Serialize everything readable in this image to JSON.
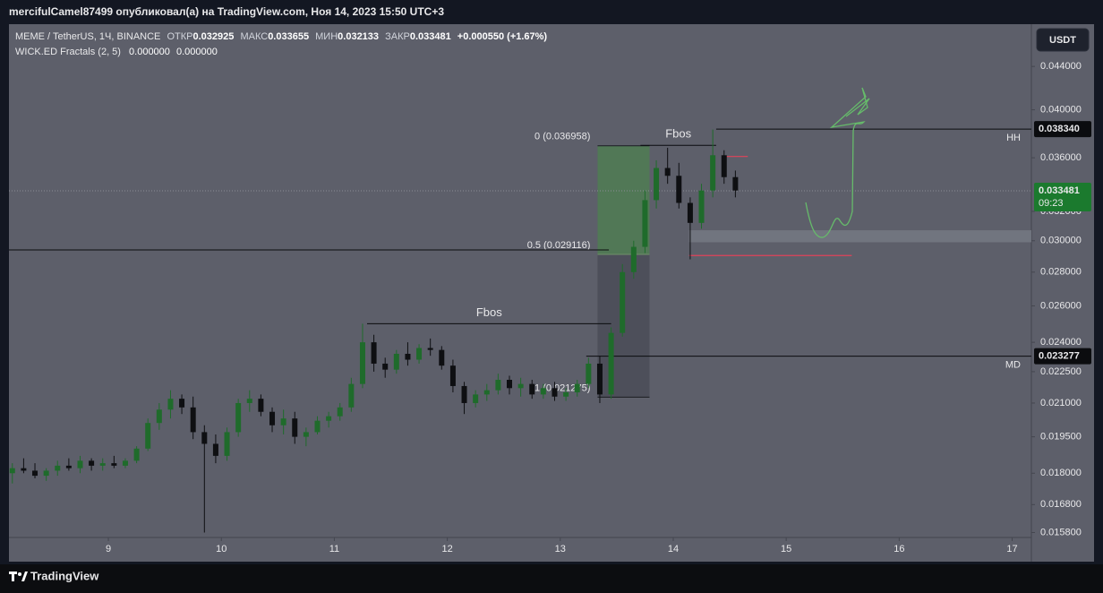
{
  "header": {
    "text": "mercifulCamel87499 опубликовал(а) на TradingView.com, Ноя 14, 2023 15:50 UTC+3"
  },
  "footer": {
    "brand": "TradingView"
  },
  "chart_data": {
    "type": "candlestick",
    "symbol": "MEME / TetherUS, 1Ч, BINANCE",
    "ohlc_legend": [
      {
        "label": "ОТКР",
        "value": 0.032925
      },
      {
        "label": "МАКС",
        "value": 0.033655
      },
      {
        "label": "МИН",
        "value": 0.032133
      },
      {
        "label": "ЗАКР",
        "value": 0.033481
      }
    ],
    "change": "+0.000550 (+1.67%)",
    "indicator": {
      "name": "WICK.ED Fractals (2, 5)",
      "values": [
        "0.000000",
        "0.000000"
      ]
    },
    "currency": "USDT",
    "x": [
      8.15,
      8.25,
      8.35,
      8.45,
      8.55,
      8.65,
      8.75,
      8.85,
      8.95,
      9.05,
      9.15,
      9.25,
      9.35,
      9.45,
      9.55,
      9.65,
      9.75,
      9.85,
      9.95,
      10.05,
      10.15,
      10.25,
      10.35,
      10.45,
      10.55,
      10.65,
      10.75,
      10.85,
      10.95,
      11.05,
      11.15,
      11.25,
      11.35,
      11.45,
      11.55,
      11.65,
      11.75,
      11.85,
      11.95,
      12.05,
      12.15,
      12.25,
      12.35,
      12.45,
      12.55,
      12.65,
      12.75,
      12.85,
      12.95,
      13.05,
      13.15,
      13.25,
      13.35,
      13.45,
      13.55,
      13.65,
      13.75,
      13.85,
      13.95,
      14.05,
      14.15,
      14.25,
      14.35,
      14.45,
      14.55
    ],
    "open": [
      0.018,
      0.0182,
      0.0181,
      0.0179,
      0.0181,
      0.0183,
      0.0182,
      0.0185,
      0.0183,
      0.0184,
      0.0183,
      0.0185,
      0.019,
      0.0201,
      0.0207,
      0.0212,
      0.0208,
      0.0197,
      0.0192,
      0.0187,
      0.0197,
      0.021,
      0.0212,
      0.0206,
      0.02,
      0.0203,
      0.0195,
      0.0197,
      0.0202,
      0.0204,
      0.0208,
      0.0219,
      0.024,
      0.0229,
      0.0226,
      0.0234,
      0.0231,
      0.0237,
      0.0236,
      0.0228,
      0.0218,
      0.021,
      0.0214,
      0.0216,
      0.0221,
      0.0217,
      0.0219,
      0.0214,
      0.0217,
      0.0213,
      0.0215,
      0.0219,
      0.0229,
      0.0214,
      0.0245,
      0.028,
      0.0296,
      0.0328,
      0.0352,
      0.0346,
      0.0326,
      0.0312,
      0.0335,
      0.0362,
      0.0345
    ],
    "high": [
      0.0184,
      0.0186,
      0.0184,
      0.0182,
      0.0185,
      0.0186,
      0.0187,
      0.0186,
      0.0186,
      0.0187,
      0.0186,
      0.0191,
      0.0203,
      0.021,
      0.0216,
      0.0214,
      0.0213,
      0.02,
      0.0196,
      0.0199,
      0.0212,
      0.0216,
      0.0214,
      0.0208,
      0.0207,
      0.0206,
      0.0199,
      0.0204,
      0.0206,
      0.021,
      0.0222,
      0.025,
      0.0244,
      0.0232,
      0.0236,
      0.024,
      0.0239,
      0.0242,
      0.0238,
      0.0231,
      0.022,
      0.0216,
      0.0219,
      0.0224,
      0.0223,
      0.0222,
      0.0221,
      0.0219,
      0.022,
      0.0217,
      0.0221,
      0.0232,
      0.0233,
      0.0248,
      0.0285,
      0.03,
      0.0335,
      0.0358,
      0.0368,
      0.0356,
      0.033,
      0.034,
      0.0383,
      0.0366,
      0.035
    ],
    "low": [
      0.0176,
      0.018,
      0.0178,
      0.0177,
      0.0179,
      0.0181,
      0.018,
      0.0181,
      0.0181,
      0.0182,
      0.0182,
      0.0184,
      0.0189,
      0.0198,
      0.0203,
      0.0205,
      0.0194,
      0.0158,
      0.0184,
      0.0185,
      0.0195,
      0.0206,
      0.0204,
      0.0197,
      0.0196,
      0.0192,
      0.0191,
      0.0196,
      0.0199,
      0.0202,
      0.0206,
      0.0217,
      0.0225,
      0.0222,
      0.0224,
      0.0228,
      0.0229,
      0.0233,
      0.0226,
      0.0215,
      0.0205,
      0.0208,
      0.0211,
      0.0214,
      0.0214,
      0.0213,
      0.0212,
      0.0212,
      0.0211,
      0.0211,
      0.0213,
      0.0217,
      0.021,
      0.0212,
      0.0243,
      0.0276,
      0.0292,
      0.0322,
      0.034,
      0.0322,
      0.0288,
      0.0308,
      0.033,
      0.034,
      0.033
    ],
    "close": [
      0.0182,
      0.0181,
      0.0179,
      0.0181,
      0.0183,
      0.0182,
      0.0185,
      0.0183,
      0.0184,
      0.0183,
      0.0185,
      0.019,
      0.0201,
      0.0207,
      0.0212,
      0.0208,
      0.0197,
      0.0192,
      0.0187,
      0.0197,
      0.021,
      0.0212,
      0.0206,
      0.02,
      0.0203,
      0.0195,
      0.0197,
      0.0202,
      0.0204,
      0.0208,
      0.0219,
      0.024,
      0.0229,
      0.0226,
      0.0234,
      0.0231,
      0.0237,
      0.0236,
      0.0228,
      0.0218,
      0.021,
      0.0214,
      0.0216,
      0.0221,
      0.0217,
      0.0219,
      0.0214,
      0.0217,
      0.0213,
      0.0215,
      0.0219,
      0.0229,
      0.0214,
      0.0245,
      0.028,
      0.0296,
      0.0328,
      0.0352,
      0.0346,
      0.0326,
      0.0312,
      0.0335,
      0.0362,
      0.0345,
      0.0335
    ],
    "up_color": "#1f6b2b",
    "down_color": "#0e0f12",
    "xlim": [
      8.12,
      17.17
    ],
    "xticks": [
      9,
      10,
      11,
      12,
      13,
      14,
      15,
      16,
      17
    ],
    "ylim": [
      0.01563,
      0.04828
    ],
    "log": true,
    "yticks": [
      {
        "value": 0.044,
        "label": "0.044000"
      },
      {
        "value": 0.04,
        "label": "0.040000"
      },
      {
        "value": 0.036,
        "label": "0.036000"
      },
      {
        "value": 0.032,
        "label": "0.032000"
      },
      {
        "value": 0.03,
        "label": "0.030000"
      },
      {
        "value": 0.028,
        "label": "0.028000"
      },
      {
        "value": 0.026,
        "label": "0.026000"
      },
      {
        "value": 0.024,
        "label": "0.024000"
      },
      {
        "value": 0.0225,
        "label": "0.022500"
      },
      {
        "value": 0.021,
        "label": "0.021000"
      },
      {
        "value": 0.0195,
        "label": "0.019500"
      },
      {
        "value": 0.018,
        "label": "0.018000"
      },
      {
        "value": 0.0168,
        "label": "0.016800"
      },
      {
        "value": 0.0158,
        "label": "0.015800"
      }
    ],
    "last_price": {
      "value": 0.033481,
      "countdown": "09:23",
      "color": "#1b7a2e"
    },
    "levels": [
      {
        "name": "HH",
        "value": 0.03834,
        "label": "0.038340",
        "x": [
          14.38,
          17.17
        ]
      },
      {
        "name": "MD",
        "value": 0.023277,
        "label": "0.023277",
        "x": [
          13.23,
          17.17
        ]
      },
      {
        "name": "Fbos",
        "value": 0.025,
        "x": [
          11.29,
          13.45
        ]
      },
      {
        "name": "Fbos",
        "value": 0.037,
        "x": [
          13.71,
          14.38
        ]
      },
      {
        "value": 0.0294,
        "x": [
          8.12,
          13.43
        ]
      }
    ],
    "red_lines": [
      {
        "value": 0.02904,
        "x": [
          14.14,
          15.58
        ]
      },
      {
        "value": 0.0361,
        "x": [
          14.47,
          14.66
        ]
      }
    ],
    "zone": {
      "values": [
        0.0299,
        0.0307
      ],
      "x": [
        14.14,
        17.17
      ]
    },
    "fib": {
      "x": [
        13.33,
        13.79
      ],
      "levels": [
        {
          "label": "0 (0.036958)",
          "value": 0.036958
        },
        {
          "label": "0.5 (0.029116)",
          "value": 0.029116
        },
        {
          "label": "1 (0.021275)",
          "value": 0.021275
        }
      ]
    }
  }
}
